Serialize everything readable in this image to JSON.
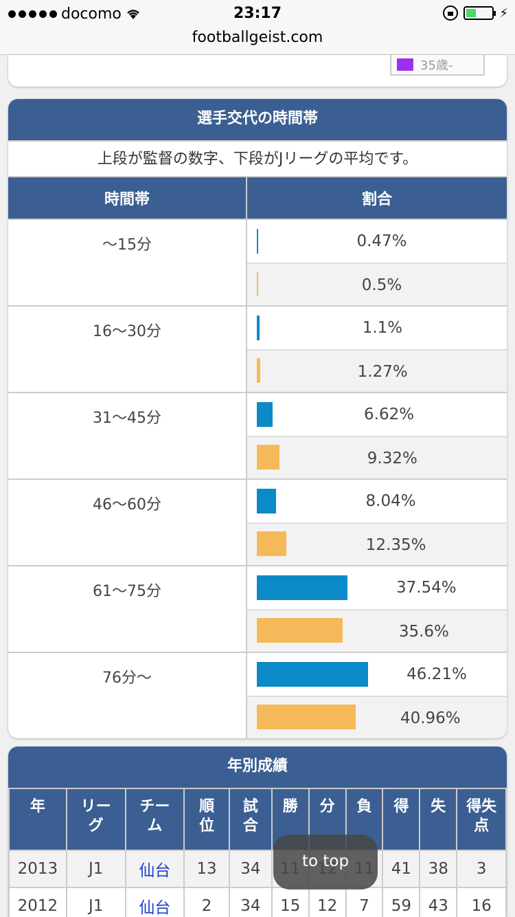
{
  "status_bar": {
    "carrier": "docomo",
    "time": "23:17"
  },
  "url": "footballgeist.com",
  "prev_card": {
    "legend_label": "35歳-",
    "legend_color": "#9b30f0"
  },
  "substitution": {
    "title": "選手交代の時間帯",
    "note": "上段が監督の数字、下段がJリーグの平均です。",
    "headers": {
      "time": "時間帯",
      "ratio": "割合"
    },
    "colors": {
      "manager": "#0a8bc8",
      "league": "#f6b95a"
    },
    "rows": [
      {
        "label": "〜15分",
        "manager": 0.47,
        "manager_text": "0.47%",
        "league": 0.5,
        "league_text": "0.5%"
      },
      {
        "label": "16〜30分",
        "manager": 1.1,
        "manager_text": "1.1%",
        "league": 1.27,
        "league_text": "1.27%"
      },
      {
        "label": "31〜45分",
        "manager": 6.62,
        "manager_text": "6.62%",
        "league": 9.32,
        "league_text": "9.32%"
      },
      {
        "label": "46〜60分",
        "manager": 8.04,
        "manager_text": "8.04%",
        "league": 12.35,
        "league_text": "12.35%"
      },
      {
        "label": "61〜75分",
        "manager": 37.54,
        "manager_text": "37.54%",
        "league": 35.6,
        "league_text": "35.6%"
      },
      {
        "label": "76分〜",
        "manager": 46.21,
        "manager_text": "46.21%",
        "league": 40.96,
        "league_text": "40.96%"
      }
    ]
  },
  "yearly": {
    "title": "年別成績",
    "headers": [
      "年",
      "リー\nグ",
      "チー\nム",
      "順\n位",
      "試\n合",
      "勝",
      "分",
      "負",
      "得",
      "失",
      "得失\n点"
    ],
    "rows": [
      [
        "2013",
        "J1",
        "仙台",
        "13",
        "34",
        "11",
        "12",
        "11",
        "41",
        "38",
        "3"
      ],
      [
        "2012",
        "J1",
        "仙台",
        "2",
        "34",
        "15",
        "12",
        "7",
        "59",
        "43",
        "16"
      ]
    ]
  },
  "to_top_label": "to top"
}
